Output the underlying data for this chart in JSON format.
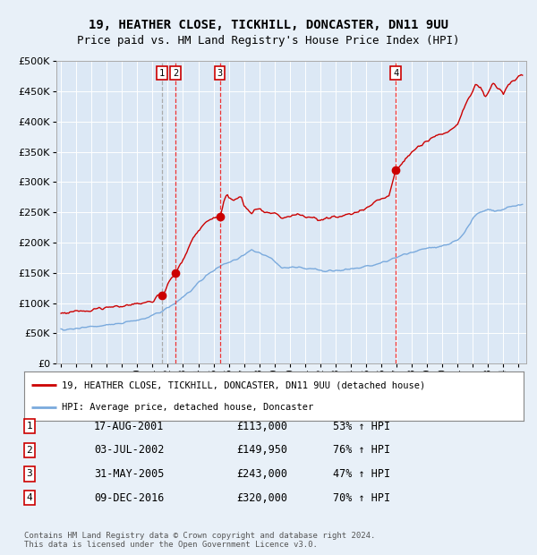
{
  "title": "19, HEATHER CLOSE, TICKHILL, DONCASTER, DN11 9UU",
  "subtitle": "Price paid vs. HM Land Registry's House Price Index (HPI)",
  "legend_label_red": "19, HEATHER CLOSE, TICKHILL, DONCASTER, DN11 9UU (detached house)",
  "legend_label_blue": "HPI: Average price, detached house, Doncaster",
  "footer": "Contains HM Land Registry data © Crown copyright and database right 2024.\nThis data is licensed under the Open Government Licence v3.0.",
  "transactions": [
    {
      "num": 1,
      "date": "17-AUG-2001",
      "price": 113000,
      "pct": "53%",
      "dir": "↑"
    },
    {
      "num": 2,
      "date": "03-JUL-2002",
      "price": 149950,
      "pct": "76%",
      "dir": "↑"
    },
    {
      "num": 3,
      "date": "31-MAY-2005",
      "price": 243000,
      "pct": "47%",
      "dir": "↑"
    },
    {
      "num": 4,
      "date": "09-DEC-2016",
      "price": 320000,
      "pct": "70%",
      "dir": "↑"
    }
  ],
  "transaction_dates_decimal": [
    2001.63,
    2002.5,
    2005.42,
    2016.94
  ],
  "transaction_prices": [
    113000,
    149950,
    243000,
    320000
  ],
  "vline1_color": "#aaaaaa",
  "vline1_style": "dashed",
  "vline_color": "#ee3333",
  "vline_style": "dashed",
  "ylim": [
    0,
    500000
  ],
  "yticks": [
    0,
    50000,
    100000,
    150000,
    200000,
    250000,
    300000,
    350000,
    400000,
    450000,
    500000
  ],
  "background_color": "#e8f0f8",
  "plot_bg_color": "#dce8f5",
  "red_color": "#cc0000",
  "blue_color": "#7aaadd",
  "dot_color": "#cc0000"
}
